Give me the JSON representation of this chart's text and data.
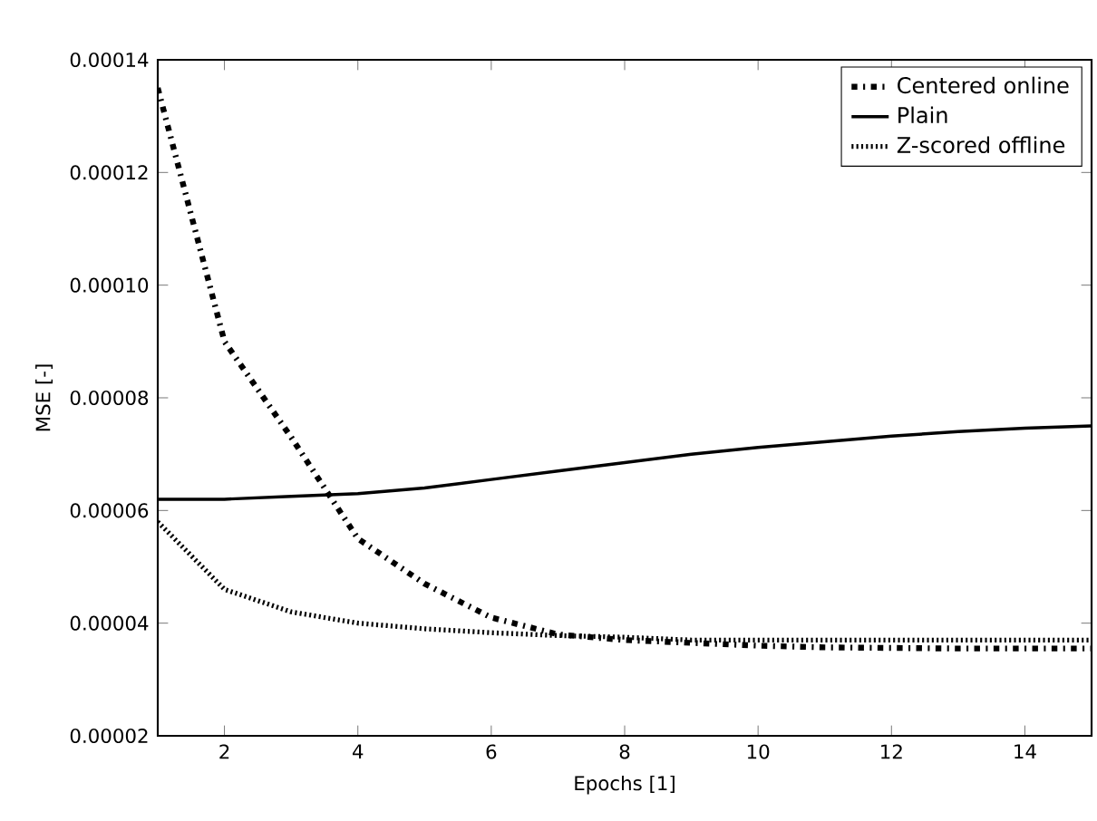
{
  "chart_data": {
    "type": "line",
    "xlabel": "Epochs [1]",
    "ylabel": "MSE [-]",
    "x": [
      1,
      2,
      3,
      4,
      5,
      6,
      7,
      8,
      9,
      10,
      11,
      12,
      13,
      14,
      15
    ],
    "series": [
      {
        "name": "Centered online",
        "color": "#000000",
        "line_style": "dashdot",
        "values": [
          0.000135,
          9e-05,
          7.3e-05,
          5.5e-05,
          4.7e-05,
          4.1e-05,
          3.8e-05,
          3.7e-05,
          3.65e-05,
          3.6e-05,
          3.57e-05,
          3.56e-05,
          3.55e-05,
          3.55e-05,
          3.55e-05
        ]
      },
      {
        "name": "Plain",
        "color": "#000000",
        "line_style": "solid",
        "values": [
          6.2e-05,
          6.2e-05,
          6.25e-05,
          6.3e-05,
          6.4e-05,
          6.55e-05,
          6.7e-05,
          6.85e-05,
          7e-05,
          7.12e-05,
          7.22e-05,
          7.32e-05,
          7.4e-05,
          7.46e-05,
          7.5e-05
        ]
      },
      {
        "name": "Z-scored offline",
        "color": "#000000",
        "line_style": "dotted",
        "values": [
          5.8e-05,
          4.6e-05,
          4.2e-05,
          4e-05,
          3.9e-05,
          3.83e-05,
          3.78e-05,
          3.75e-05,
          3.7e-05,
          3.7e-05,
          3.7e-05,
          3.7e-05,
          3.7e-05,
          3.7e-05,
          3.7e-05
        ]
      }
    ],
    "xlim": [
      1,
      15
    ],
    "ylim": [
      2e-05,
      0.00014
    ],
    "xticks": [
      2,
      4,
      6,
      8,
      10,
      12,
      14
    ],
    "yticks": [
      {
        "value": 2e-05,
        "label": "0.00002"
      },
      {
        "value": 4e-05,
        "label": "0.00004"
      },
      {
        "value": 6e-05,
        "label": "0.00006"
      },
      {
        "value": 8e-05,
        "label": "0.00008"
      },
      {
        "value": 0.0001,
        "label": "0.00010"
      },
      {
        "value": 0.00012,
        "label": "0.00012"
      },
      {
        "value": 0.00014,
        "label": "0.00014"
      }
    ],
    "grid": false,
    "legend": "top right",
    "marker": "none"
  }
}
